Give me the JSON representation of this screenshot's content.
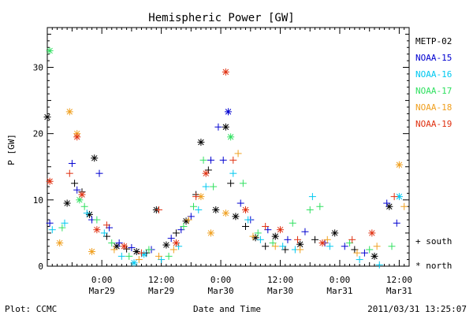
{
  "chart_data": {
    "type": "scatter",
    "title": "Hemispheric Power [GW]",
    "ylabel": "P [GW]",
    "xlabel": "Date and Time",
    "ylim": [
      0,
      36
    ],
    "y_ticks": [
      0,
      10,
      20,
      30
    ],
    "x_range": [
      "2011-03-28T13:00",
      "2011-03-31T14:00"
    ],
    "x_ticks": [
      {
        "t": "2011-03-29T00:00",
        "time": "0:00",
        "date": "Mar29"
      },
      {
        "t": "2011-03-29T12:00",
        "time": "12:00",
        "date": "Mar29"
      },
      {
        "t": "2011-03-30T00:00",
        "time": "0:00",
        "date": "Mar30"
      },
      {
        "t": "2011-03-30T12:00",
        "time": "12:00",
        "date": "Mar30"
      },
      {
        "t": "2011-03-31T00:00",
        "time": "0:00",
        "date": "Mar31"
      },
      {
        "t": "2011-03-31T12:00",
        "time": "12:00",
        "date": "Mar31"
      }
    ],
    "legend_position": "right",
    "grid": false,
    "marker_legend": [
      {
        "symbol": "+",
        "label": "south"
      },
      {
        "symbol": "*",
        "label": "north"
      }
    ],
    "series": [
      {
        "name": "METP-02",
        "color": "#000000",
        "points": [
          [
            "2011-03-28T13:00",
            22.5,
            "n"
          ],
          [
            "2011-03-28T17:00",
            9.5,
            "n"
          ],
          [
            "2011-03-28T18:30",
            12.5,
            "+"
          ],
          [
            "2011-03-28T20:00",
            11.2,
            "+"
          ],
          [
            "2011-03-28T22:30",
            16.3,
            "n"
          ],
          [
            "2011-03-28T21:30",
            7.8,
            "n"
          ],
          [
            "2011-03-29T01:00",
            4.5,
            "+"
          ],
          [
            "2011-03-29T03:00",
            3.0,
            "n"
          ],
          [
            "2011-03-29T05:00",
            2.6,
            "+"
          ],
          [
            "2011-03-29T07:00",
            2.2,
            "n"
          ],
          [
            "2011-03-29T09:00",
            2.0,
            "+"
          ],
          [
            "2011-03-29T11:00",
            8.5,
            "n"
          ],
          [
            "2011-03-29T13:00",
            3.2,
            "n"
          ],
          [
            "2011-03-29T15:00",
            5.0,
            "+"
          ],
          [
            "2011-03-29T17:00",
            6.8,
            "n"
          ],
          [
            "2011-03-29T19:00",
            10.8,
            "+"
          ],
          [
            "2011-03-29T20:00",
            18.7,
            "n"
          ],
          [
            "2011-03-29T21:30",
            14.5,
            "+"
          ],
          [
            "2011-03-29T23:00",
            8.5,
            "n"
          ],
          [
            "2011-03-30T01:00",
            21.0,
            "n"
          ],
          [
            "2011-03-30T02:00",
            12.5,
            "+"
          ],
          [
            "2011-03-30T03:00",
            7.5,
            "n"
          ],
          [
            "2011-03-30T05:00",
            6.0,
            "+"
          ],
          [
            "2011-03-30T07:00",
            4.3,
            "n"
          ],
          [
            "2011-03-30T09:00",
            3.0,
            "+"
          ],
          [
            "2011-03-30T11:00",
            4.5,
            "n"
          ],
          [
            "2011-03-30T13:00",
            2.5,
            "+"
          ],
          [
            "2011-03-30T16:00",
            3.3,
            "n"
          ],
          [
            "2011-03-30T19:00",
            4.0,
            "+"
          ],
          [
            "2011-03-30T23:00",
            5.0,
            "n"
          ],
          [
            "2011-03-31T03:00",
            2.5,
            "+"
          ],
          [
            "2011-03-31T07:00",
            1.5,
            "n"
          ],
          [
            "2011-03-31T10:00",
            9.0,
            "n"
          ]
        ]
      },
      {
        "name": "NOAA-15",
        "color": "#0000d0",
        "points": [
          [
            "2011-03-28T13:30",
            6.5,
            "+"
          ],
          [
            "2011-03-28T18:00",
            15.5,
            "+"
          ],
          [
            "2011-03-28T19:00",
            11.5,
            "+"
          ],
          [
            "2011-03-28T22:00",
            7.0,
            "+"
          ],
          [
            "2011-03-28T23:30",
            14.0,
            "+"
          ],
          [
            "2011-03-29T01:30",
            5.8,
            "+"
          ],
          [
            "2011-03-29T03:30",
            3.5,
            "+"
          ],
          [
            "2011-03-29T06:00",
            2.8,
            "+"
          ],
          [
            "2011-03-29T10:00",
            2.5,
            "+"
          ],
          [
            "2011-03-29T14:00",
            4.2,
            "+"
          ],
          [
            "2011-03-29T16:00",
            5.5,
            "+"
          ],
          [
            "2011-03-29T18:00",
            7.5,
            "+"
          ],
          [
            "2011-03-29T22:00",
            16.0,
            "+"
          ],
          [
            "2011-03-29T23:30",
            21.0,
            "+"
          ],
          [
            "2011-03-30T01:30",
            23.3,
            "n"
          ],
          [
            "2011-03-30T00:30",
            16.0,
            "+"
          ],
          [
            "2011-03-30T04:00",
            9.5,
            "+"
          ],
          [
            "2011-03-30T06:00",
            7.0,
            "+"
          ],
          [
            "2011-03-30T09:30",
            5.5,
            "+"
          ],
          [
            "2011-03-30T13:30",
            4.0,
            "+"
          ],
          [
            "2011-03-30T17:00",
            5.2,
            "+"
          ],
          [
            "2011-03-30T21:00",
            3.5,
            "+"
          ],
          [
            "2011-03-31T01:00",
            3.0,
            "+"
          ],
          [
            "2011-03-31T05:00",
            2.0,
            "+"
          ],
          [
            "2011-03-31T09:30",
            9.5,
            "+"
          ],
          [
            "2011-03-31T11:30",
            6.5,
            "+"
          ]
        ]
      },
      {
        "name": "NOAA-16",
        "color": "#00c8f0",
        "points": [
          [
            "2011-03-28T14:00",
            5.5,
            "+"
          ],
          [
            "2011-03-28T16:30",
            6.5,
            "+"
          ],
          [
            "2011-03-28T21:00",
            8.0,
            "+"
          ],
          [
            "2011-03-29T00:30",
            5.0,
            "+"
          ],
          [
            "2011-03-29T04:00",
            1.5,
            "+"
          ],
          [
            "2011-03-29T06:30",
            0.5,
            "n"
          ],
          [
            "2011-03-29T08:30",
            1.8,
            "n"
          ],
          [
            "2011-03-29T12:00",
            1.0,
            "+"
          ],
          [
            "2011-03-29T15:30",
            3.0,
            "+"
          ],
          [
            "2011-03-29T19:30",
            8.5,
            "+"
          ],
          [
            "2011-03-29T21:00",
            12.0,
            "+"
          ],
          [
            "2011-03-30T02:30",
            14.0,
            "+"
          ],
          [
            "2011-03-30T05:30",
            7.0,
            "+"
          ],
          [
            "2011-03-30T08:00",
            4.0,
            "+"
          ],
          [
            "2011-03-30T12:30",
            3.0,
            "+"
          ],
          [
            "2011-03-30T15:00",
            2.5,
            "+"
          ],
          [
            "2011-03-30T18:30",
            10.5,
            "+"
          ],
          [
            "2011-03-30T22:00",
            3.0,
            "+"
          ],
          [
            "2011-03-31T04:00",
            1.0,
            "+"
          ],
          [
            "2011-03-31T08:00",
            0.2,
            "+"
          ],
          [
            "2011-03-31T12:00",
            10.5,
            "n"
          ]
        ]
      },
      {
        "name": "NOAA-17",
        "color": "#30e060",
        "points": [
          [
            "2011-03-28T13:30",
            32.5,
            "n"
          ],
          [
            "2011-03-28T16:00",
            5.8,
            "+"
          ],
          [
            "2011-03-28T19:30",
            10.0,
            "n"
          ],
          [
            "2011-03-28T20:30",
            9.0,
            "+"
          ],
          [
            "2011-03-28T23:00",
            7.0,
            "+"
          ],
          [
            "2011-03-29T02:00",
            3.5,
            "+"
          ],
          [
            "2011-03-29T05:30",
            1.5,
            "+"
          ],
          [
            "2011-03-29T09:30",
            2.5,
            "+"
          ],
          [
            "2011-03-29T13:30",
            1.5,
            "+"
          ],
          [
            "2011-03-29T16:30",
            6.0,
            "+"
          ],
          [
            "2011-03-29T18:30",
            9.0,
            "+"
          ],
          [
            "2011-03-29T20:30",
            16.0,
            "+"
          ],
          [
            "2011-03-29T22:30",
            12.0,
            "+"
          ],
          [
            "2011-03-30T02:00",
            19.5,
            "n"
          ],
          [
            "2011-03-30T04:30",
            12.5,
            "+"
          ],
          [
            "2011-03-30T07:30",
            5.0,
            "+"
          ],
          [
            "2011-03-30T10:30",
            3.5,
            "+"
          ],
          [
            "2011-03-30T14:30",
            6.5,
            "+"
          ],
          [
            "2011-03-30T18:00",
            8.5,
            "+"
          ],
          [
            "2011-03-30T20:00",
            9.0,
            "+"
          ],
          [
            "2011-03-31T02:00",
            3.5,
            "+"
          ],
          [
            "2011-03-31T06:00",
            2.5,
            "+"
          ],
          [
            "2011-03-31T10:30",
            3.0,
            "+"
          ]
        ]
      },
      {
        "name": "NOAA-18",
        "color": "#f0a020",
        "points": [
          [
            "2011-03-28T17:30",
            23.3,
            "n"
          ],
          [
            "2011-03-28T19:00",
            20.0,
            "n"
          ],
          [
            "2011-03-28T15:30",
            3.5,
            "n"
          ],
          [
            "2011-03-28T22:00",
            2.2,
            "n"
          ],
          [
            "2011-03-29T02:30",
            2.5,
            "+"
          ],
          [
            "2011-03-29T07:30",
            1.0,
            "+"
          ],
          [
            "2011-03-29T11:30",
            1.5,
            "+"
          ],
          [
            "2011-03-29T14:30",
            2.5,
            "+"
          ],
          [
            "2011-03-29T17:30",
            7.0,
            "+"
          ],
          [
            "2011-03-29T20:00",
            10.5,
            "n"
          ],
          [
            "2011-03-29T22:00",
            5.0,
            "n"
          ],
          [
            "2011-03-30T01:00",
            8.0,
            "n"
          ],
          [
            "2011-03-30T03:30",
            17.0,
            "+"
          ],
          [
            "2011-03-30T06:30",
            4.5,
            "+"
          ],
          [
            "2011-03-30T11:00",
            3.0,
            "+"
          ],
          [
            "2011-03-30T16:00",
            2.5,
            "+"
          ],
          [
            "2011-03-30T21:30",
            4.0,
            "+"
          ],
          [
            "2011-03-31T03:30",
            2.0,
            "+"
          ],
          [
            "2011-03-31T07:30",
            3.0,
            "+"
          ],
          [
            "2011-03-31T12:00",
            15.3,
            "n"
          ],
          [
            "2011-03-31T13:00",
            9.0,
            "+"
          ]
        ]
      },
      {
        "name": "NOAA-19",
        "color": "#e03010",
        "points": [
          [
            "2011-03-28T13:30",
            12.8,
            "n"
          ],
          [
            "2011-03-28T17:30",
            14.0,
            "+"
          ],
          [
            "2011-03-28T19:00",
            19.5,
            "n"
          ],
          [
            "2011-03-28T20:00",
            10.8,
            "n"
          ],
          [
            "2011-03-28T23:00",
            5.5,
            "n"
          ],
          [
            "2011-03-29T01:00",
            6.2,
            "+"
          ],
          [
            "2011-03-29T04:30",
            3.0,
            "n"
          ],
          [
            "2011-03-29T08:00",
            2.0,
            "+"
          ],
          [
            "2011-03-29T11:30",
            8.5,
            "+"
          ],
          [
            "2011-03-29T15:00",
            3.5,
            "n"
          ],
          [
            "2011-03-29T19:00",
            10.5,
            "+"
          ],
          [
            "2011-03-29T21:00",
            14.0,
            "n"
          ],
          [
            "2011-03-30T01:00",
            29.3,
            "n"
          ],
          [
            "2011-03-30T02:30",
            16.0,
            "+"
          ],
          [
            "2011-03-30T05:00",
            8.5,
            "n"
          ],
          [
            "2011-03-30T09:00",
            6.0,
            "+"
          ],
          [
            "2011-03-30T12:00",
            5.5,
            "n"
          ],
          [
            "2011-03-30T15:30",
            4.0,
            "+"
          ],
          [
            "2011-03-30T20:30",
            3.5,
            "n"
          ],
          [
            "2011-03-31T02:30",
            4.0,
            "+"
          ],
          [
            "2011-03-31T06:30",
            5.0,
            "n"
          ],
          [
            "2011-03-31T11:00",
            10.5,
            "+"
          ]
        ]
      }
    ]
  },
  "footer": {
    "left": "Plot: CCMC",
    "right": "2011/03/31  13:25:07"
  }
}
